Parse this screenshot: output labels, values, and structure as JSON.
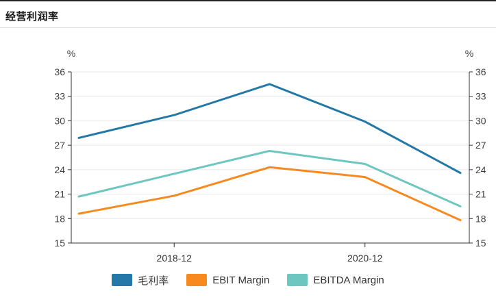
{
  "header": {
    "title": "经营利润率"
  },
  "chart_data": {
    "type": "line",
    "title": "经营利润率",
    "y_unit": "%",
    "ylim": [
      15,
      36
    ],
    "y_ticks": [
      36,
      33,
      30,
      27,
      24,
      21,
      18,
      15
    ],
    "x_tick_labels": [
      "2018-12",
      "2020-12"
    ],
    "x_tick_point_indices": [
      1,
      3
    ],
    "num_points": 5,
    "grid": true,
    "dual_y_axis": true,
    "legend_position": "bottom",
    "series": [
      {
        "name": "毛利率",
        "color": "#2478a8",
        "values": [
          27.9,
          30.7,
          34.5,
          29.9,
          23.6
        ]
      },
      {
        "name": "EBIT Margin",
        "color": "#f8891f",
        "values": [
          18.6,
          20.8,
          24.3,
          23.1,
          17.8
        ]
      },
      {
        "name": "EBITDA Margin",
        "color": "#6ec6c0",
        "values": [
          20.7,
          23.5,
          26.3,
          24.7,
          19.5
        ]
      }
    ],
    "colors": {
      "axis": "#333333",
      "grid": "#e8e8e8",
      "tick_label": "#404040",
      "x_label": "#333333"
    }
  }
}
